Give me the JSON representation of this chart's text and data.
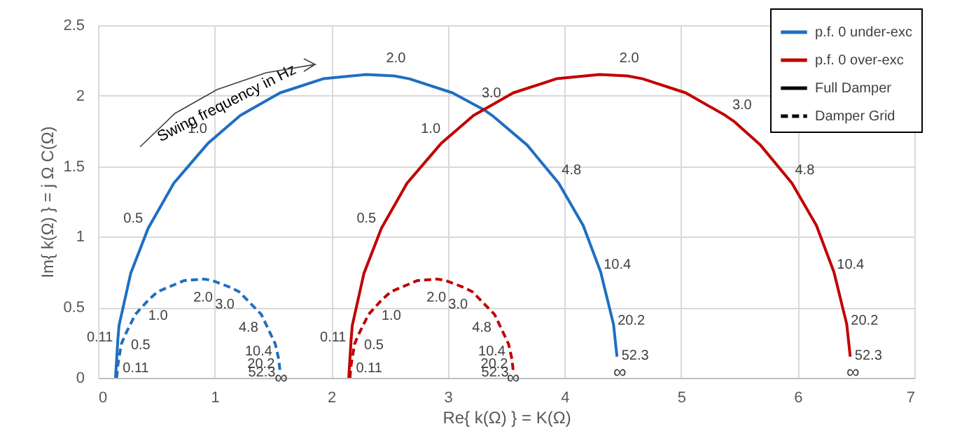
{
  "chart_data": {
    "type": "line",
    "xlabel": "Re{ k(Ω) } = K(Ω)",
    "ylabel": "Im{ k(Ω) } = j Ω C(Ω)",
    "xlim": [
      0,
      7
    ],
    "xticks": [
      0,
      1,
      2,
      3,
      4,
      5,
      6,
      7
    ],
    "ylim": [
      0,
      2.5
    ],
    "yticks": [
      0,
      0.5,
      1,
      1.5,
      2,
      2.5
    ],
    "grid": true,
    "legend": "top right",
    "marker": "none",
    "series": [
      {
        "name": "p.f. 0 under-exc",
        "color": "#1f6fc1",
        "line_style": "solid",
        "x": [
          0.15,
          0.17,
          0.18,
          0.28,
          0.43,
          0.65,
          0.94,
          1.22,
          1.56,
          1.93,
          2.3,
          2.54,
          2.67,
          3.04,
          3.31,
          3.38,
          3.68,
          3.95,
          4.16,
          4.31,
          4.42,
          4.45
        ],
        "values": [
          0,
          0.27,
          0.37,
          0.74,
          1.06,
          1.38,
          1.66,
          1.86,
          2.02,
          2.12,
          2.15,
          2.14,
          2.12,
          2.02,
          1.9,
          1.86,
          1.65,
          1.38,
          1.08,
          0.75,
          0.38,
          0.15
        ]
      },
      {
        "name": "p.f. 0 over-exc",
        "color": "#c00000",
        "line_style": "solid",
        "x": [
          2.15,
          2.17,
          2.18,
          2.28,
          2.43,
          2.65,
          2.94,
          3.22,
          3.56,
          3.93,
          4.3,
          4.54,
          4.67,
          5.04,
          5.38,
          5.45,
          5.68,
          5.95,
          6.16,
          6.31,
          6.42,
          6.45
        ],
        "values": [
          0,
          0.27,
          0.37,
          0.74,
          1.06,
          1.38,
          1.66,
          1.86,
          2.02,
          2.12,
          2.15,
          2.14,
          2.12,
          2.02,
          1.86,
          1.82,
          1.65,
          1.38,
          1.08,
          0.75,
          0.38,
          0.15
        ]
      },
      {
        "name": "Full Damper",
        "color": "#000000",
        "line_style": "solid"
      },
      {
        "name": "Damper Grid",
        "color": "#000000",
        "line_style": "dashed"
      },
      {
        "color": "#1f6fc1",
        "line_style": "dashed",
        "x": [
          0.16,
          0.17,
          0.2,
          0.23,
          0.32,
          0.43,
          0.51,
          0.74,
          0.91,
          0.98,
          1.14,
          1.21,
          1.4,
          1.52,
          1.55,
          1.56
        ],
        "values": [
          0,
          0.09,
          0.24,
          0.3,
          0.45,
          0.55,
          0.61,
          0.69,
          0.7,
          0.69,
          0.64,
          0.61,
          0.45,
          0.24,
          0.13,
          0.05
        ]
      },
      {
        "color": "#c00000",
        "line_style": "dashed",
        "x": [
          2.16,
          2.17,
          2.2,
          2.23,
          2.32,
          2.43,
          2.51,
          2.74,
          2.91,
          2.98,
          3.14,
          3.21,
          3.4,
          3.52,
          3.55,
          3.56
        ],
        "values": [
          0,
          0.09,
          0.24,
          0.3,
          0.45,
          0.55,
          0.61,
          0.69,
          0.7,
          0.69,
          0.64,
          0.61,
          0.45,
          0.24,
          0.13,
          0.05
        ]
      }
    ],
    "annotations": [
      "Swing frequency in Hz",
      "∞",
      "∞",
      {
        "text": "0.11",
        "x": 0.17,
        "y": 0.27
      },
      {
        "text": "0.5",
        "x": 0.43,
        "y": 1.06
      },
      {
        "text": "1.0",
        "x": 0.94,
        "y": 1.66
      },
      {
        "text": "2.0",
        "x": 2.54,
        "y": 2.14
      },
      {
        "text": "3.0",
        "x": 3.31,
        "y": 1.9
      },
      {
        "text": "4.8",
        "x": 3.95,
        "y": 1.38
      },
      {
        "text": "10.4",
        "x": 4.31,
        "y": 0.75
      },
      {
        "text": "20.2",
        "x": 4.42,
        "y": 0.38
      },
      {
        "text": "52.3",
        "x": 4.45,
        "y": 0.15
      },
      {
        "text": "0.11",
        "x": 2.17,
        "y": 0.27
      },
      {
        "text": "0.5",
        "x": 2.43,
        "y": 1.06
      },
      {
        "text": "1.0",
        "x": 2.94,
        "y": 1.66
      },
      {
        "text": "2.0",
        "x": 4.54,
        "y": 2.14
      },
      {
        "text": "3.0",
        "x": 5.45,
        "y": 1.82
      },
      {
        "text": "4.8",
        "x": 5.95,
        "y": 1.38
      },
      {
        "text": "10.4",
        "x": 6.31,
        "y": 0.75
      },
      {
        "text": "20.2",
        "x": 6.42,
        "y": 0.38
      },
      {
        "text": "52.3",
        "x": 6.45,
        "y": 0.15
      },
      {
        "text": "0.11",
        "x": 0.17,
        "y": 0.09
      },
      {
        "text": "0.5",
        "x": 0.23,
        "y": 0.3
      },
      {
        "text": "1.0",
        "x": 0.43,
        "y": 0.55
      },
      {
        "text": "2.0",
        "x": 0.91,
        "y": 0.7
      },
      {
        "text": "3.0",
        "x": 1.14,
        "y": 0.64
      },
      {
        "text": "4.8",
        "x": 1.4,
        "y": 0.45
      },
      {
        "text": "10.4",
        "x": 1.52,
        "y": 0.24
      },
      {
        "text": "20.2",
        "x": 1.55,
        "y": 0.13
      },
      {
        "text": "52.3",
        "x": 1.56,
        "y": 0.05
      },
      {
        "text": "∞",
        "x": 1.57,
        "y": 0
      },
      {
        "text": "0.11",
        "x": 2.17,
        "y": 0.09
      },
      {
        "text": "0.5",
        "x": 2.23,
        "y": 0.3
      },
      {
        "text": "1.0",
        "x": 2.43,
        "y": 0.55
      },
      {
        "text": "2.0",
        "x": 2.91,
        "y": 0.7
      },
      {
        "text": "3.0",
        "x": 3.14,
        "y": 0.64
      },
      {
        "text": "4.8",
        "x": 3.4,
        "y": 0.45
      },
      {
        "text": "10.4",
        "x": 3.52,
        "y": 0.24
      },
      {
        "text": "20.2",
        "x": 3.55,
        "y": 0.13
      },
      {
        "text": "52.3",
        "x": 3.56,
        "y": 0.05
      },
      {
        "text": "∞",
        "x": 3.56,
        "y": 0
      }
    ]
  }
}
